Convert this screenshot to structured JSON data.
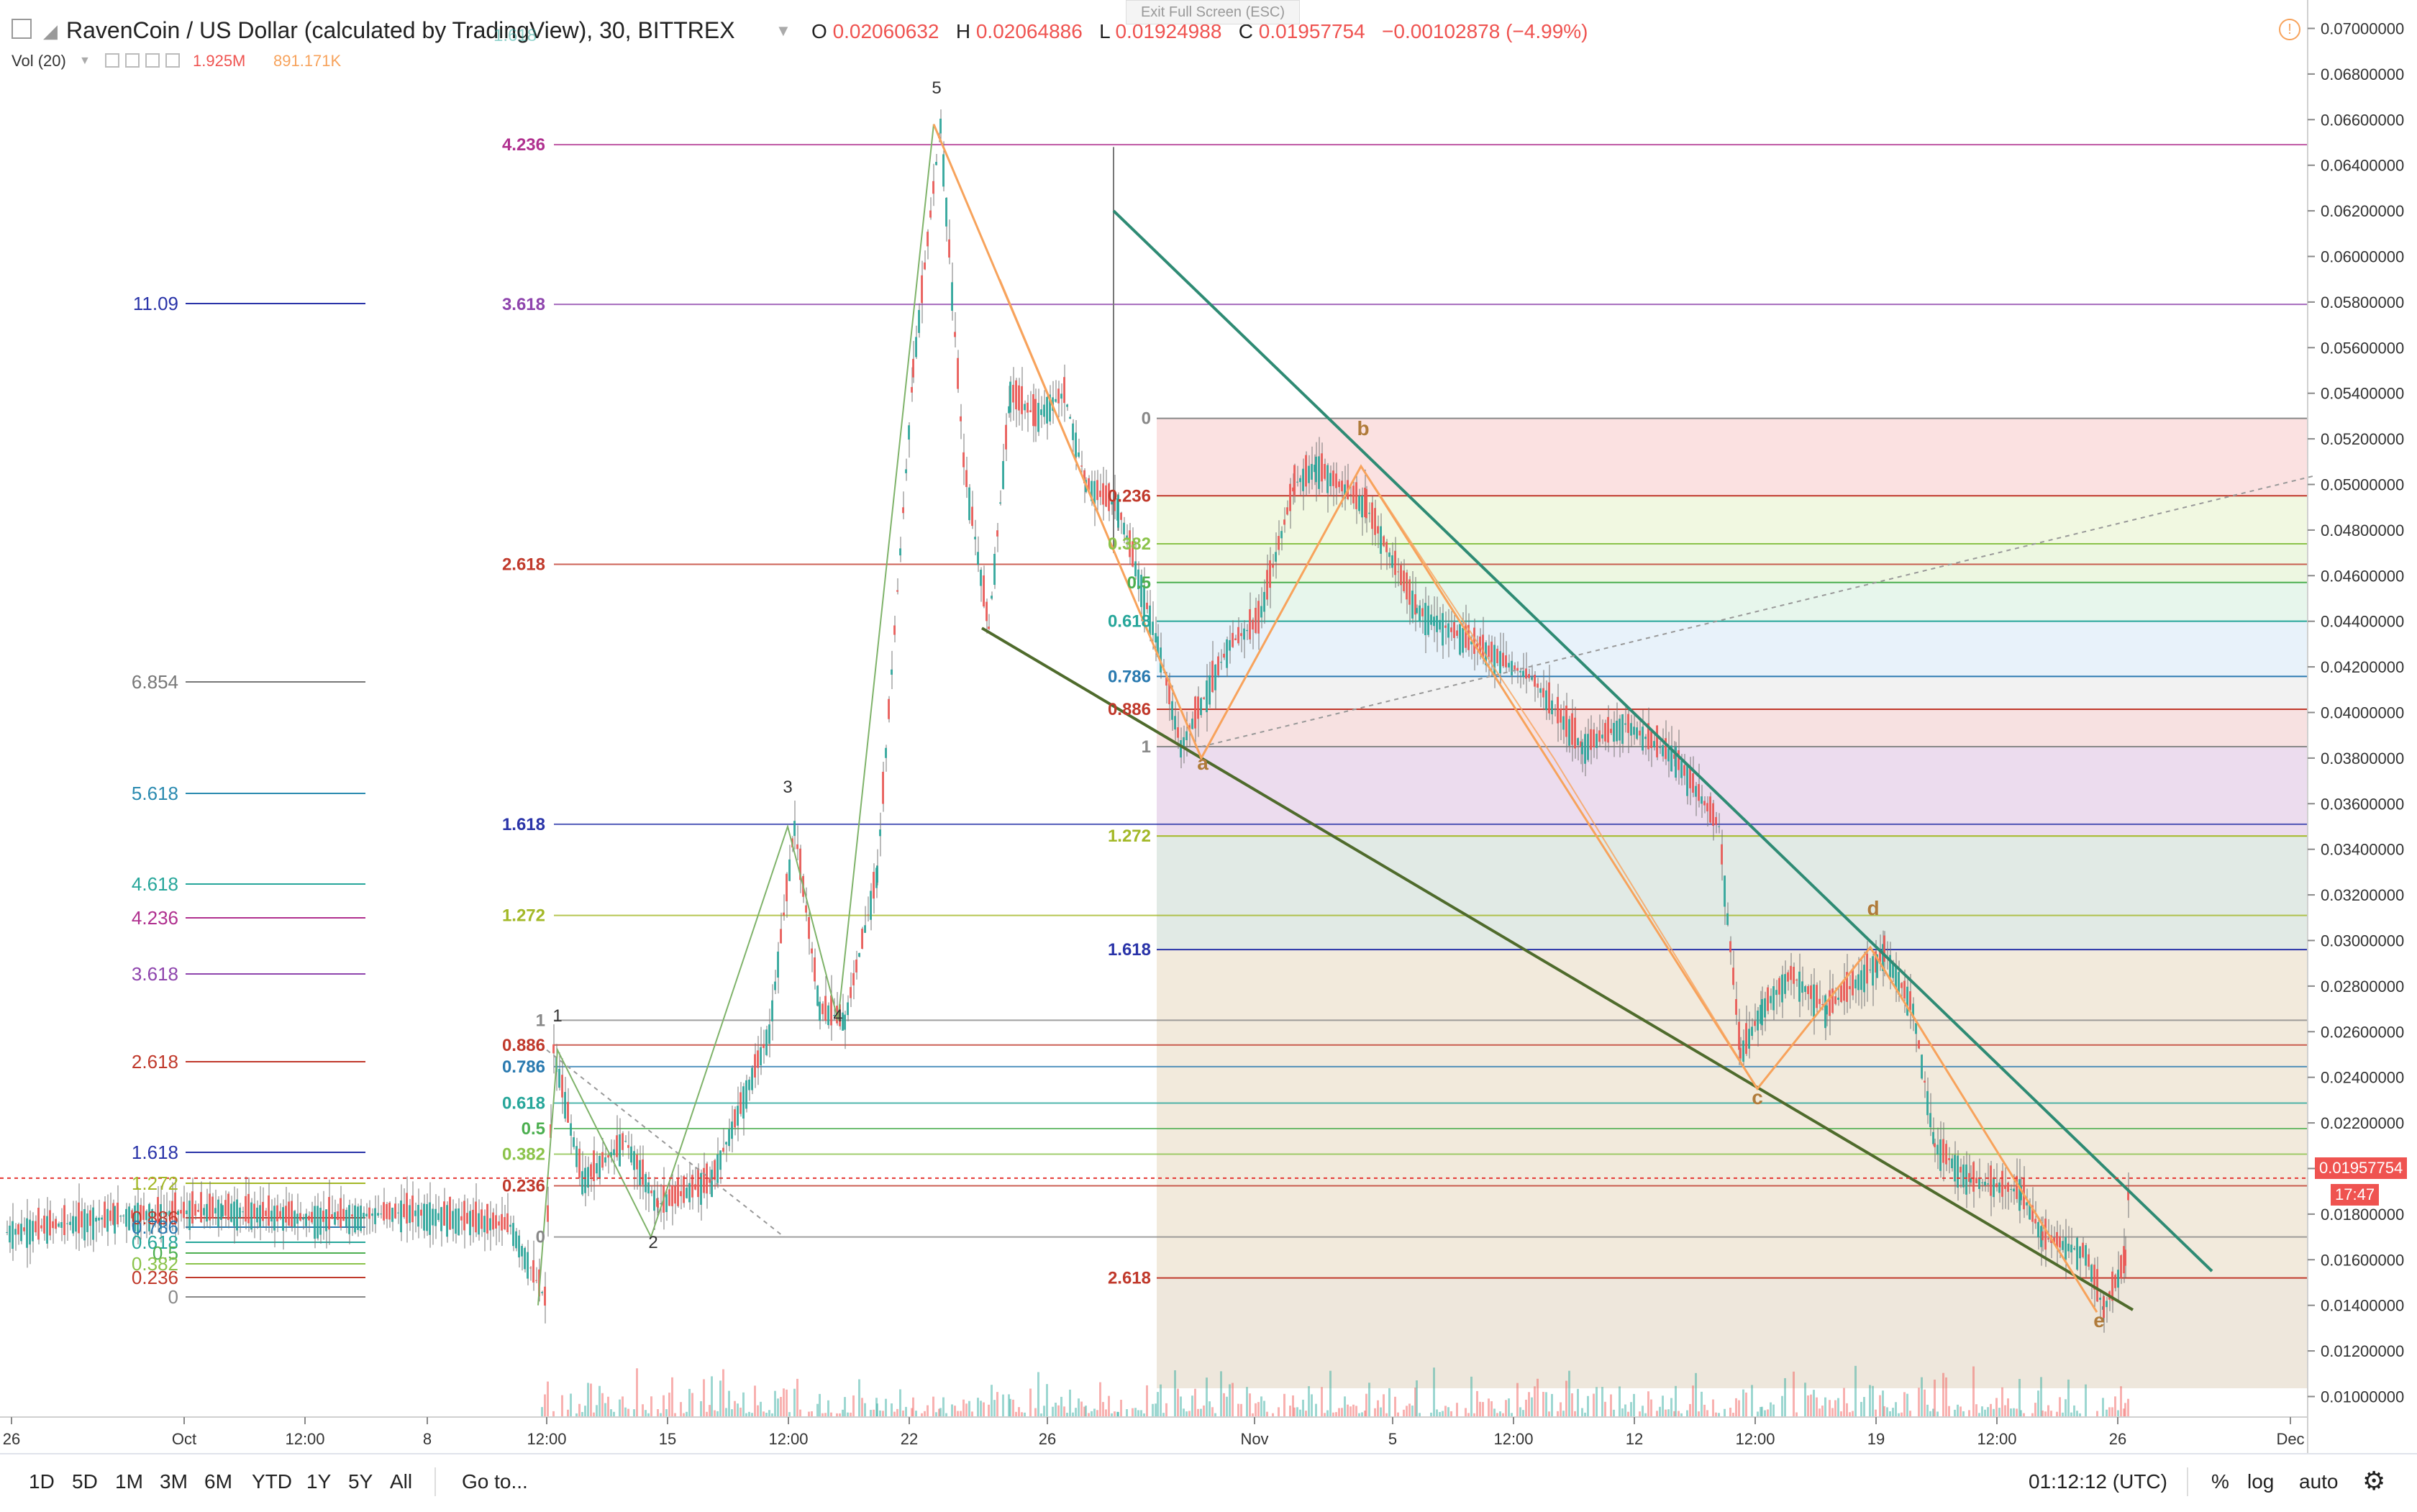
{
  "header": {
    "symbol_title": "RavenCoin / US Dollar (calculated by TradingView), 30, BITTREX",
    "ohlc": {
      "o_label": "O",
      "o": "0.02060632",
      "h_label": "H",
      "h": "0.02064886",
      "l_label": "L",
      "l": "0.01924988",
      "c_label": "C",
      "c": "0.01957754",
      "change": "−0.00102878 (−4.99%)"
    },
    "volume": {
      "label": "Vol (20)",
      "v1": "1.925M",
      "v2": "891.171K"
    },
    "fullscreen_tip": "Exit Full Screen (ESC)",
    "top_fib_fragment": "1.618"
  },
  "colors": {
    "up": "#26a69a",
    "down": "#ef5350",
    "orange": "#f7a35c",
    "green_line": "#2e8b74",
    "olive_line": "#4f6b2c",
    "red_dotted": "#e53935",
    "price_tag": "#ef5350"
  },
  "chart_data": {
    "type": "candlestick",
    "title": "RavenCoin / US Dollar (calculated by TradingView), 30, BITTREX",
    "y_axis": {
      "min": 0.0091,
      "max": 0.0703,
      "ticks": [
        "0.07000000",
        "0.06800000",
        "0.06600000",
        "0.06400000",
        "0.06200000",
        "0.06000000",
        "0.05800000",
        "0.05600000",
        "0.05400000",
        "0.05200000",
        "0.05000000",
        "0.04800000",
        "0.04600000",
        "0.04400000",
        "0.04200000",
        "0.04000000",
        "0.03800000",
        "0.03600000",
        "0.03400000",
        "0.03200000",
        "0.03000000",
        "0.02800000",
        "0.02600000",
        "0.02400000",
        "0.02200000",
        "0.02000000",
        "0.01800000",
        "0.01600000",
        "0.01400000",
        "0.01200000",
        "0.01000000"
      ]
    },
    "x_axis": {
      "ticks": [
        "26",
        "Oct",
        "12:00",
        "8",
        "12:00",
        "15",
        "12:00",
        "22",
        "26",
        "Nov",
        "5",
        "12:00",
        "12",
        "12:00",
        "19",
        "12:00",
        "26",
        "Dec"
      ]
    },
    "last_price": "0.01957754",
    "countdown": "17:47",
    "price_path": [
      [
        0,
        0.0172
      ],
      [
        150,
        0.0179
      ],
      [
        300,
        0.0182
      ],
      [
        420,
        0.0178
      ],
      [
        560,
        0.0181
      ],
      [
        700,
        0.0175
      ],
      [
        748,
        0.0143
      ],
      [
        760,
        0.0252
      ],
      [
        800,
        0.0195
      ],
      [
        860,
        0.0212
      ],
      [
        905,
        0.0184
      ],
      [
        980,
        0.0195
      ],
      [
        1060,
        0.026
      ],
      [
        1095,
        0.035
      ],
      [
        1130,
        0.027
      ],
      [
        1165,
        0.0265
      ],
      [
        1210,
        0.033
      ],
      [
        1260,
        0.055
      ],
      [
        1298,
        0.0658
      ],
      [
        1330,
        0.051
      ],
      [
        1365,
        0.0437
      ],
      [
        1395,
        0.054
      ],
      [
        1430,
        0.053
      ],
      [
        1470,
        0.054
      ],
      [
        1500,
        0.05
      ],
      [
        1545,
        0.049
      ],
      [
        1600,
        0.043
      ],
      [
        1632,
        0.0385
      ],
      [
        1700,
        0.043
      ],
      [
        1740,
        0.044
      ],
      [
        1790,
        0.05
      ],
      [
        1820,
        0.0508
      ],
      [
        1890,
        0.049
      ],
      [
        1960,
        0.0445
      ],
      [
        2040,
        0.043
      ],
      [
        2120,
        0.0415
      ],
      [
        2190,
        0.0385
      ],
      [
        2250,
        0.0395
      ],
      [
        2320,
        0.038
      ],
      [
        2380,
        0.035
      ],
      [
        2410,
        0.025
      ],
      [
        2440,
        0.027
      ],
      [
        2480,
        0.0285
      ],
      [
        2530,
        0.027
      ],
      [
        2600,
        0.029
      ],
      [
        2610,
        0.0295
      ],
      [
        2650,
        0.027
      ],
      [
        2680,
        0.021
      ],
      [
        2730,
        0.0195
      ],
      [
        2800,
        0.019
      ],
      [
        2830,
        0.017
      ],
      [
        2890,
        0.0163
      ],
      [
        2915,
        0.0138
      ],
      [
        2945,
        0.016
      ],
      [
        2950,
        0.0195
      ]
    ],
    "waves": {
      "impulse": [
        [
          "1",
          0.0252
        ],
        [
          "2",
          0.017
        ],
        [
          "3",
          0.035
        ],
        [
          "4",
          0.0265
        ],
        [
          "5",
          0.0658
        ]
      ],
      "correction": [
        [
          "a",
          0.038
        ],
        [
          "b",
          0.0508
        ],
        [
          "c",
          0.0235
        ],
        [
          "d",
          0.0297
        ],
        [
          "e",
          0.0137
        ]
      ]
    },
    "fib_sets": [
      {
        "position": "left",
        "labels": [
          "11.09",
          "6.854",
          "5.618",
          "4.618",
          "4.236",
          "3.618",
          "2.618",
          "1.618",
          "1.272",
          "0.886",
          "0.786",
          "0.618",
          "0.5",
          "0.382",
          "0.236",
          "0"
        ]
      },
      {
        "position": "middle",
        "labels": [
          "4.236",
          "3.618",
          "2.618",
          "1.618",
          "1.272",
          "1",
          "0.886",
          "0.786",
          "0.618",
          "0.5",
          "0.382",
          "0.236",
          "0"
        ]
      },
      {
        "position": "right",
        "labels": [
          "0",
          "0.236",
          "0.382",
          "0.5",
          "0.618",
          "0.786",
          "0.886",
          "1",
          "1.272",
          "1.618",
          "2.618"
        ]
      }
    ]
  },
  "bottom": {
    "ranges": [
      "1D",
      "5D",
      "1M",
      "3M",
      "6M",
      "YTD",
      "1Y",
      "5Y",
      "All"
    ],
    "goto": "Go to...",
    "clock": "01:12:12 (UTC)",
    "percent": "%",
    "log": "log",
    "auto": "auto"
  }
}
